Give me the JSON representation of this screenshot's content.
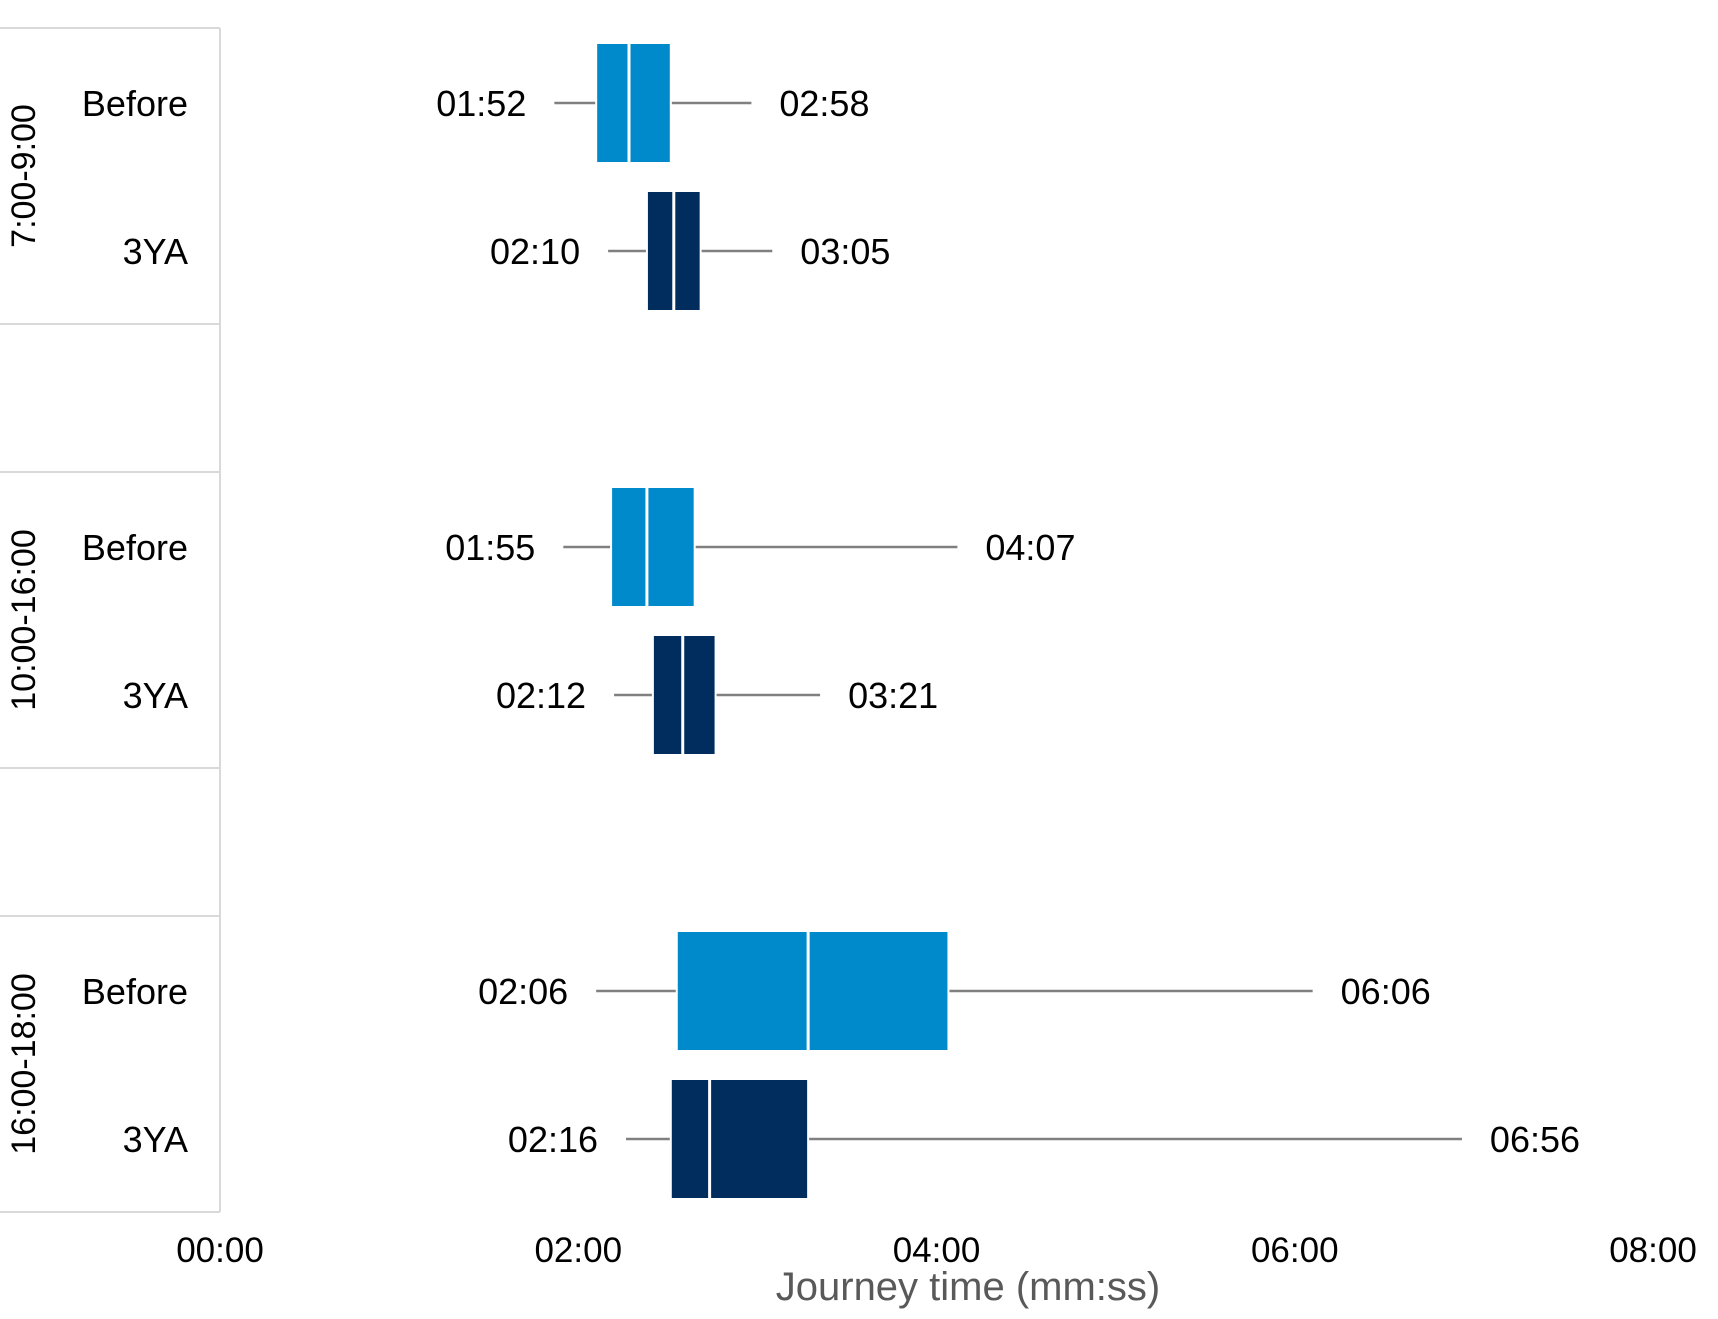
{
  "chart_data": {
    "type": "boxplot",
    "orientation": "horizontal",
    "xlabel": "Journey time (mm:ss)",
    "xlim": [
      "00:00",
      "08:00"
    ],
    "x_ticks": [
      "00:00",
      "02:00",
      "04:00",
      "06:00",
      "08:00"
    ],
    "grid": false,
    "groups": [
      {
        "label": "7:00-9:00",
        "rows": [
          {
            "category": "Before",
            "min": "01:52",
            "q1": "02:06",
            "median": "02:17",
            "q3": "02:31",
            "max": "02:58",
            "color": "#008ACB"
          },
          {
            "category": "3YA",
            "min": "02:10",
            "q1": "02:23",
            "median": "02:32",
            "q3": "02:41",
            "max": "03:05",
            "color": "#002D5E"
          }
        ]
      },
      {
        "label": "10:00-16:00",
        "rows": [
          {
            "category": "Before",
            "min": "01:55",
            "q1": "02:11",
            "median": "02:23",
            "q3": "02:39",
            "max": "04:07",
            "color": "#008ACB"
          },
          {
            "category": "3YA",
            "min": "02:12",
            "q1": "02:25",
            "median": "02:35",
            "q3": "02:46",
            "max": "03:21",
            "color": "#002D5E"
          }
        ]
      },
      {
        "label": "16:00-18:00",
        "rows": [
          {
            "category": "Before",
            "min": "02:06",
            "q1": "02:33",
            "median": "03:17",
            "q3": "04:04",
            "max": "06:06",
            "color": "#008ACB"
          },
          {
            "category": "3YA",
            "min": "02:16",
            "q1": "02:31",
            "median": "02:44",
            "q3": "03:17",
            "max": "06:56",
            "color": "#002D5E"
          }
        ]
      }
    ]
  }
}
